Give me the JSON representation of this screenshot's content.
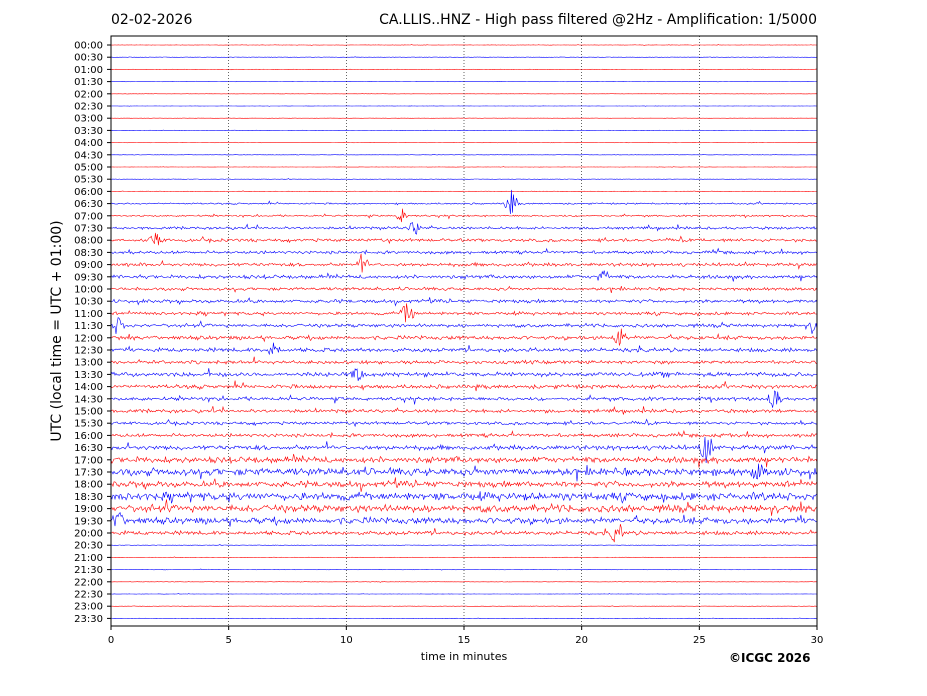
{
  "header": {
    "date": "02-02-2026",
    "title": "CA.LLIS..HNZ - High pass filtered @2Hz - Amplification: 1/5000"
  },
  "footer": {
    "copyright": "©ICGC 2026"
  },
  "chart_data": {
    "type": "line",
    "title": "CA.LLIS..HNZ - High pass filtered @2Hz - Amplification: 1/5000",
    "xlabel": "time in minutes",
    "ylabel": "UTC (local time = UTC + 01:00)",
    "xlim": [
      0,
      30
    ],
    "x_ticks": [
      0,
      5,
      10,
      15,
      20,
      25,
      30
    ],
    "x_grid": "dotted vertical lines every 5 minutes",
    "row_labels": [
      "00:00",
      "00:30",
      "01:00",
      "01:30",
      "02:00",
      "02:30",
      "03:00",
      "03:30",
      "04:00",
      "04:30",
      "05:00",
      "05:30",
      "06:00",
      "06:30",
      "07:00",
      "07:30",
      "08:00",
      "08:30",
      "09:00",
      "09:30",
      "10:00",
      "10:30",
      "11:00",
      "11:30",
      "12:00",
      "12:30",
      "13:00",
      "13:30",
      "14:00",
      "14:30",
      "15:00",
      "15:30",
      "16:00",
      "16:30",
      "17:00",
      "17:30",
      "18:00",
      "18:30",
      "19:00",
      "19:30",
      "20:00",
      "20:30",
      "21:00",
      "21:30",
      "22:00",
      "22:30",
      "23:00",
      "23:30"
    ],
    "row_colors": [
      "#ff0000",
      "#0000ff",
      "#000000"
    ],
    "row_activity": [
      0.05,
      0.05,
      0.04,
      0.04,
      0.03,
      0.03,
      0.03,
      0.04,
      0.04,
      0.04,
      0.04,
      0.05,
      0.06,
      0.18,
      0.2,
      0.3,
      0.35,
      0.35,
      0.4,
      0.42,
      0.35,
      0.4,
      0.35,
      0.4,
      0.45,
      0.45,
      0.4,
      0.5,
      0.45,
      0.4,
      0.4,
      0.35,
      0.4,
      0.55,
      0.7,
      0.85,
      0.7,
      0.9,
      0.85,
      0.75,
      0.45,
      0.06,
      0.05,
      0.05,
      0.04,
      0.04,
      0.04,
      0.04
    ],
    "events": [
      {
        "row": 13,
        "minute": 17.0,
        "amplitude": 1.6
      },
      {
        "row": 14,
        "minute": 12.4,
        "amplitude": 0.9
      },
      {
        "row": 15,
        "minute": 12.9,
        "amplitude": 0.8
      },
      {
        "row": 16,
        "minute": 1.9,
        "amplitude": 0.9
      },
      {
        "row": 18,
        "minute": 10.7,
        "amplitude": 0.9
      },
      {
        "row": 19,
        "minute": 20.9,
        "amplitude": 0.8
      },
      {
        "row": 22,
        "minute": 12.6,
        "amplitude": 1.4
      },
      {
        "row": 23,
        "minute": 0.3,
        "amplitude": 1.0
      },
      {
        "row": 23,
        "minute": 30.0,
        "amplitude": 1.8
      },
      {
        "row": 24,
        "minute": 21.6,
        "amplitude": 1.2
      },
      {
        "row": 25,
        "minute": 6.9,
        "amplitude": 0.9
      },
      {
        "row": 27,
        "minute": 10.5,
        "amplitude": 0.9
      },
      {
        "row": 29,
        "minute": 28.2,
        "amplitude": 1.2
      },
      {
        "row": 33,
        "minute": 25.3,
        "amplitude": 1.8
      },
      {
        "row": 35,
        "minute": 27.5,
        "amplitude": 0.8
      },
      {
        "row": 39,
        "minute": 0.3,
        "amplitude": 1.0
      },
      {
        "row": 40,
        "minute": 21.5,
        "amplitude": 1.3
      }
    ]
  }
}
